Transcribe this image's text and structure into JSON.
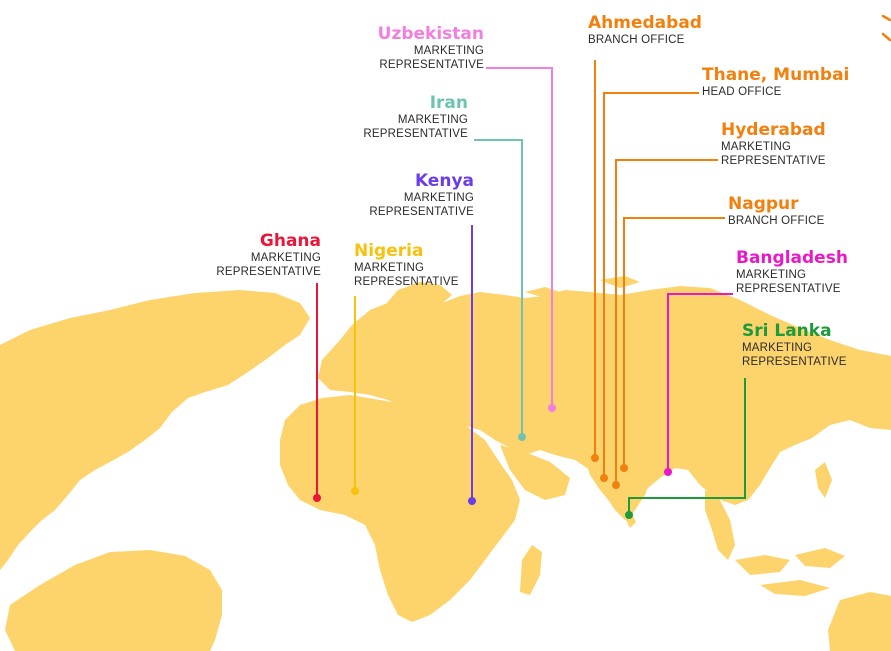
{
  "map": {
    "land_color": "#FDD36C",
    "locations": [
      {
        "id": "uzbekistan",
        "name": "Uzbekistan",
        "role": "MARKETING REPRESENTATIVE",
        "color": "#F07FDF"
      },
      {
        "id": "iran",
        "name": "Iran",
        "role": "MARKETING REPRESENTATIVE",
        "color": "#6FC3B2"
      },
      {
        "id": "kenya",
        "name": "Kenya",
        "role": "MARKETING REPRESENTATIVE",
        "color": "#6A3DE8"
      },
      {
        "id": "ghana",
        "name": "Ghana",
        "role": "MARKETING REPRESENTATIVE",
        "color": "#E8173A"
      },
      {
        "id": "nigeria",
        "name": "Nigeria",
        "role": "MARKETING REPRESENTATIVE",
        "color": "#F6C20D"
      },
      {
        "id": "ahmedabad",
        "name": "Ahmedabad",
        "role": "BRANCH OFFICE",
        "color": "#F2800F"
      },
      {
        "id": "thane",
        "name": "Thane, Mumbai",
        "role": "HEAD OFFICE",
        "color": "#F2800F"
      },
      {
        "id": "hyderabad",
        "name": "Hyderabad",
        "role": "MARKETING REPRESENTATIVE",
        "color": "#F2800F"
      },
      {
        "id": "nagpur",
        "name": "Nagpur",
        "role": "BRANCH OFFICE",
        "color": "#F2800F"
      },
      {
        "id": "bangladesh",
        "name": "Bangladesh",
        "role": "MARKETING REPRESENTATIVE",
        "color": "#E81AC8"
      },
      {
        "id": "srilanka",
        "name": "Sri Lanka",
        "role": "MARKETING REPRESENTATIVE",
        "color": "#1E9A3A"
      }
    ]
  }
}
